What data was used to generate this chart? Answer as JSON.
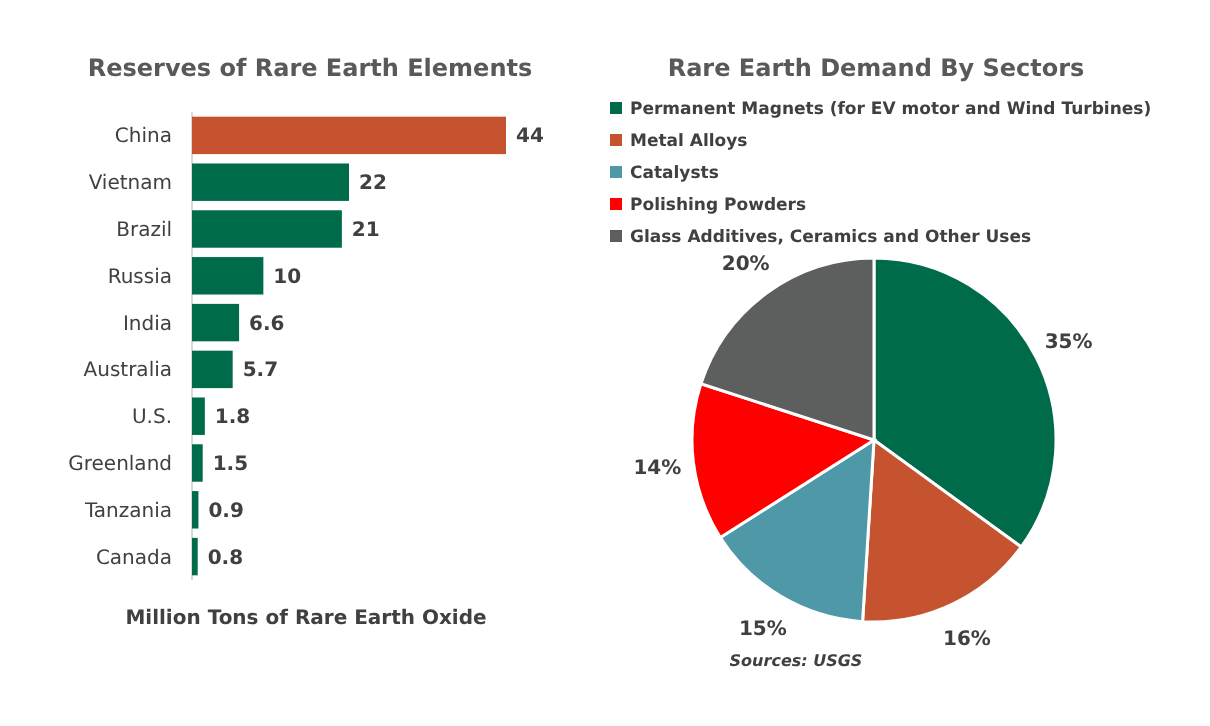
{
  "chart_data": [
    {
      "type": "bar",
      "orientation": "horizontal",
      "title": "Reserves of Rare Earth Elements",
      "xlabel": "Million Tons of Rare Earth Oxide",
      "categories": [
        "China",
        "Vietnam",
        "Brazil",
        "Russia",
        "India",
        "Australia",
        "U.S.",
        "Greenland",
        "Tanzania",
        "Canada"
      ],
      "values": [
        44,
        22,
        21,
        10,
        6.6,
        5.7,
        1.8,
        1.5,
        0.9,
        0.8
      ],
      "colors": [
        "#c55330",
        "#006b4b",
        "#006b4b",
        "#006b4b",
        "#006b4b",
        "#006b4b",
        "#006b4b",
        "#006b4b",
        "#006b4b",
        "#006b4b"
      ],
      "data_labels": true,
      "annotations": [
        "Sources: USGS"
      ]
    },
    {
      "type": "pie",
      "title": "Rare Earth Demand By Sectors",
      "categories": [
        "Permanent Magnets (for EV motor and Wind Turbines)",
        "Metal Alloys",
        "Catalysts",
        "Polishing Powders",
        "Glass Additives, Ceramics and Other Uses"
      ],
      "values": [
        35,
        16,
        15,
        14,
        20
      ],
      "colors": [
        "#006b4b",
        "#c55330",
        "#4e98a8",
        "#ff0000",
        "#5d5f5e"
      ],
      "value_labels": [
        "35%",
        "16%",
        "15%",
        "14%",
        "20%"
      ],
      "legend": "top"
    }
  ]
}
